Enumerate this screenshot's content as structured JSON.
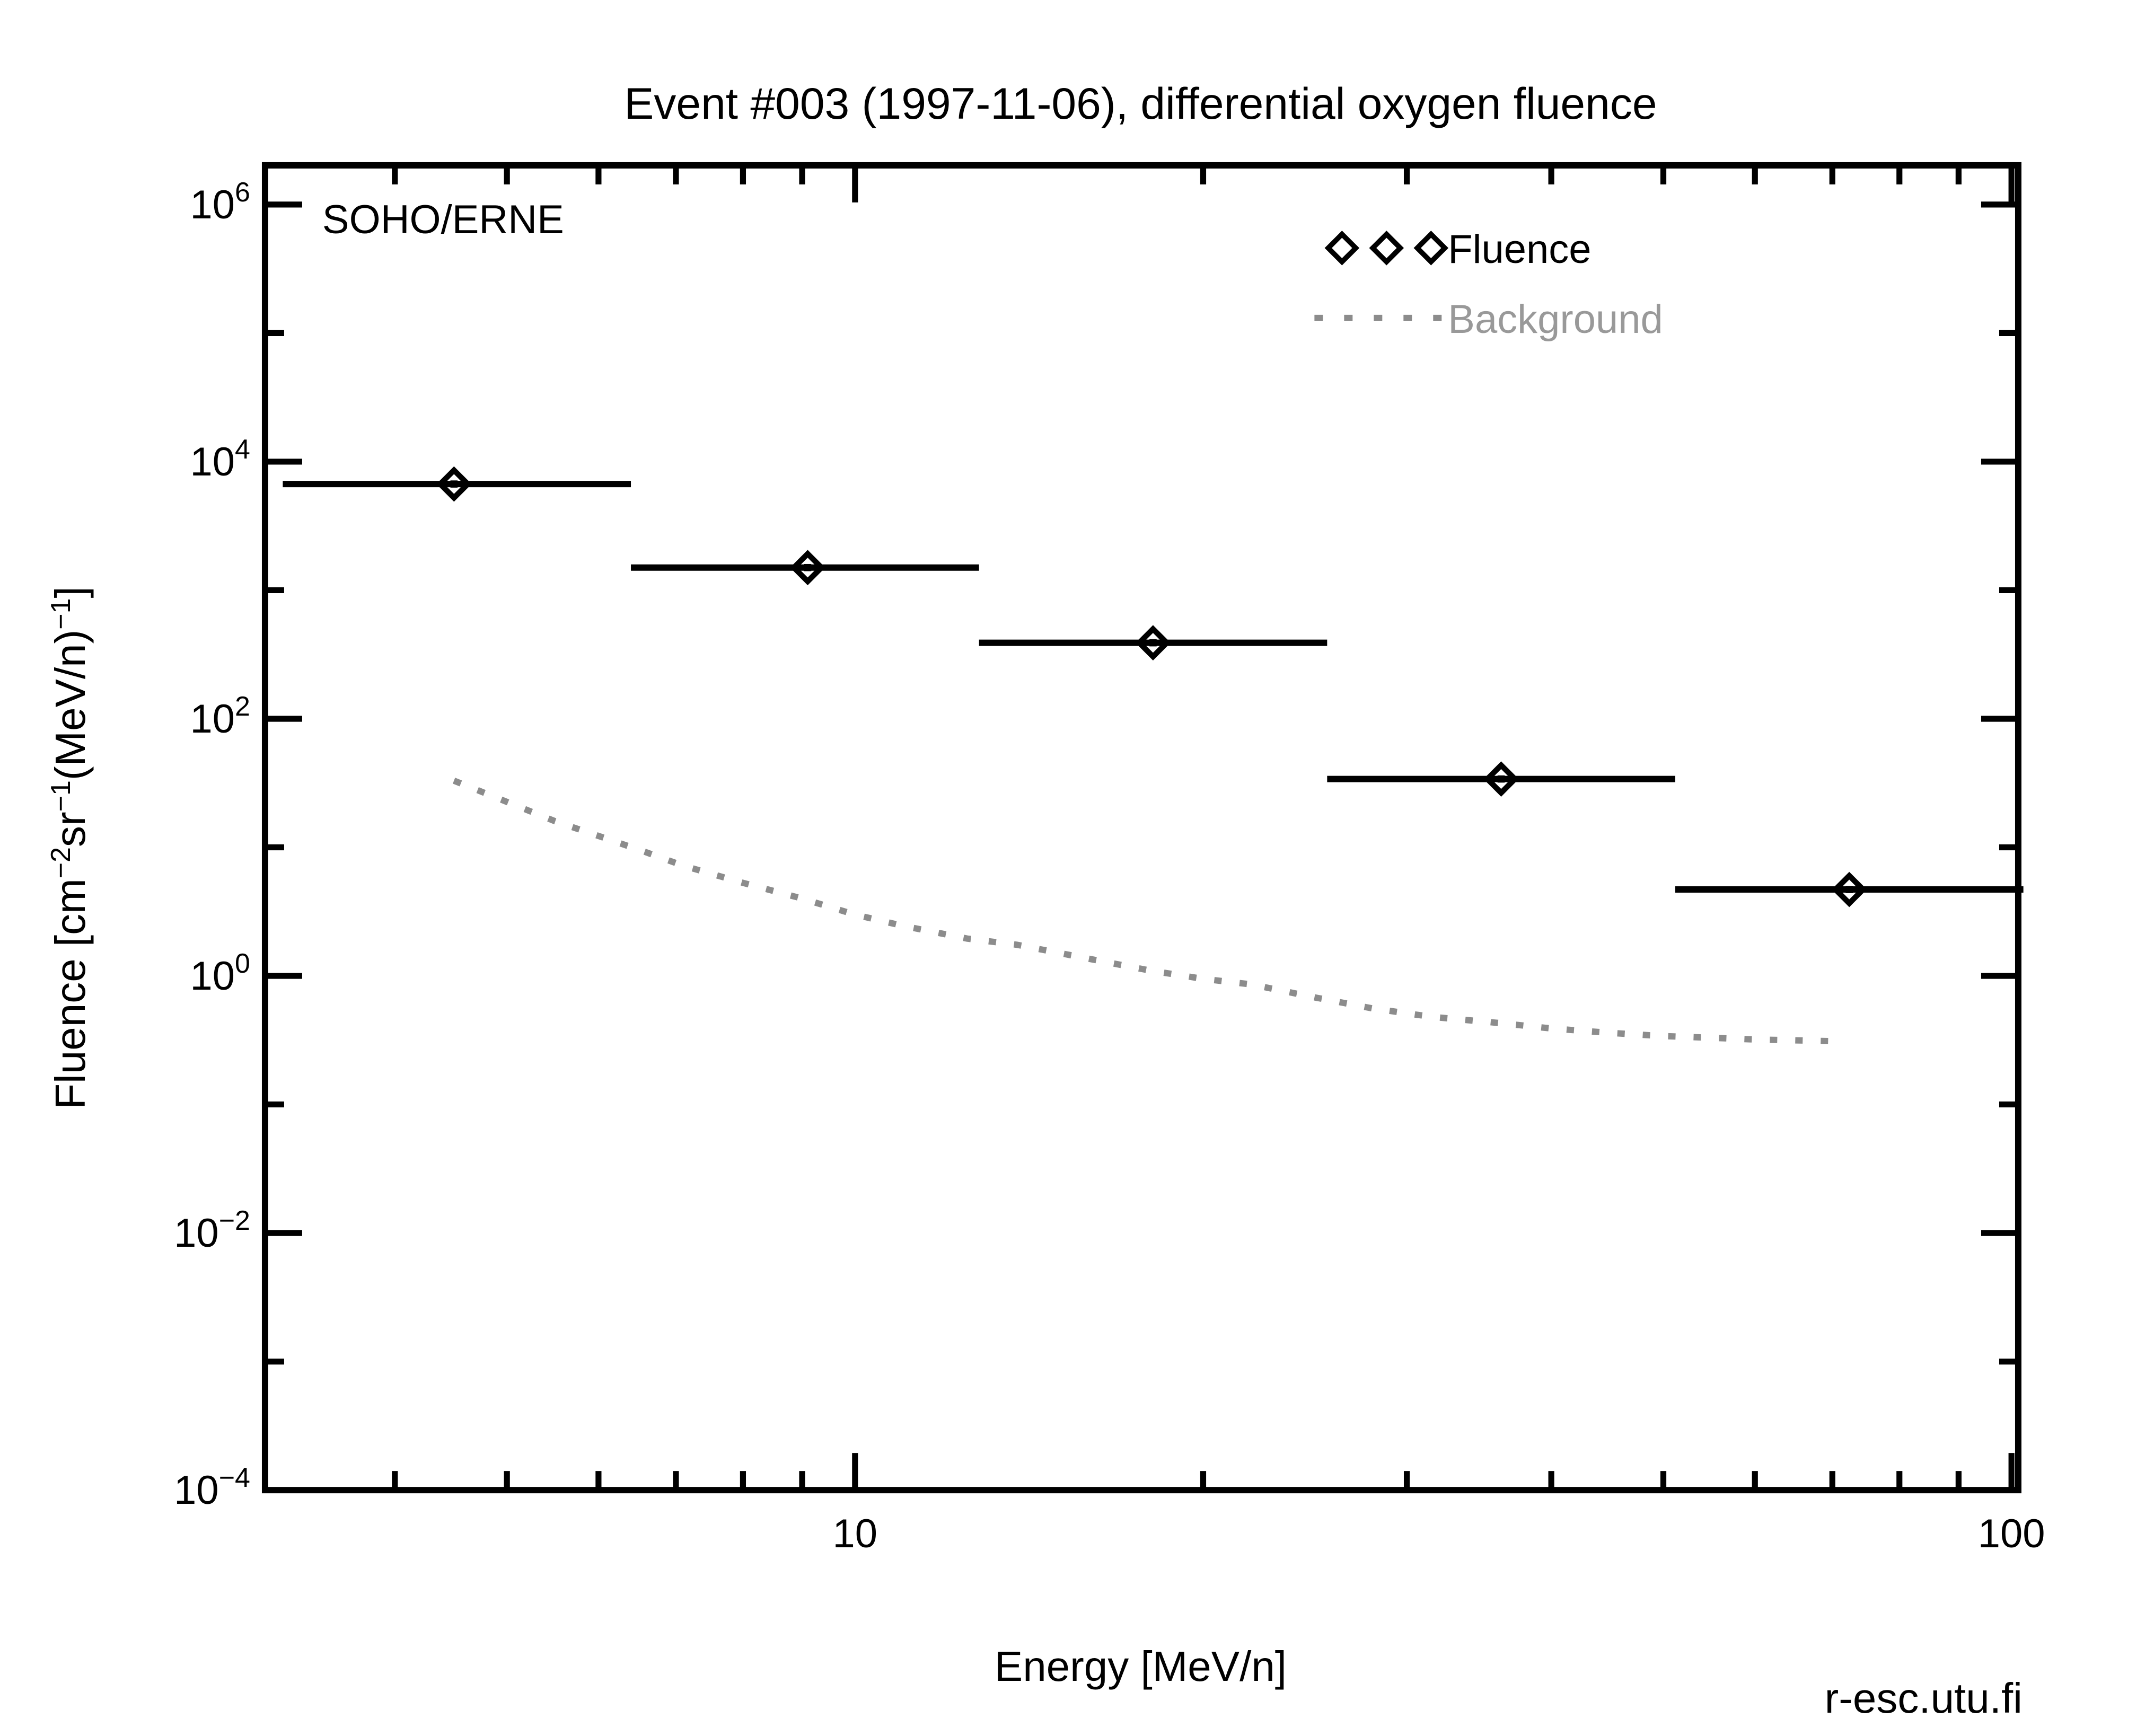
{
  "chart_data": {
    "type": "scatter",
    "title": "Event #003 (1997-11-06), differential oxygen fluence",
    "instrument_label": "SOHO/ERNE",
    "credit": "r-esc.utu.fi",
    "x_axis": {
      "label": "Energy [MeV/n]",
      "scale": "log",
      "range": [
        3.1,
        102.4
      ],
      "labeled_ticks": [
        10,
        100
      ],
      "minor_ticks": [
        4,
        5,
        6,
        7,
        8,
        9,
        20,
        30,
        40,
        50,
        60,
        70,
        80,
        90
      ]
    },
    "y_axis": {
      "label_plain": "Fluence [cm⁻²sr⁻¹(MeV/n)⁻¹]",
      "label_segments": [
        {
          "t": "Fluence [cm"
        },
        {
          "t": "−2",
          "sup": true
        },
        {
          "t": "sr"
        },
        {
          "t": "−1",
          "sup": true
        },
        {
          "t": "(MeV/n)"
        },
        {
          "t": "−1",
          "sup": true
        },
        {
          "t": "]"
        }
      ],
      "scale": "log",
      "range_exponents": [
        -4,
        6
      ],
      "labeled_ticks": [
        {
          "base": "10",
          "exp": "6",
          "log": 6
        },
        {
          "base": "10",
          "exp": "4",
          "log": 4
        },
        {
          "base": "10",
          "exp": "2",
          "log": 2
        },
        {
          "base": "10",
          "exp": "0",
          "log": 0
        },
        {
          "base": "10",
          "exp": "−2",
          "log": -2
        },
        {
          "base": "10",
          "exp": "−4",
          "log": -4
        }
      ],
      "minor_tick_exponents": [
        5,
        3,
        1,
        -1,
        -3
      ]
    },
    "legend": {
      "position": "top-right",
      "items": [
        {
          "label": "Fluence",
          "marker": "open-diamond",
          "color": "#000000",
          "label_color": "#000000"
        },
        {
          "label": "Background",
          "marker": "dotted-line",
          "color": "#8c8c8c",
          "label_color": "#999999"
        }
      ]
    },
    "series": [
      {
        "name": "Fluence",
        "type": "points",
        "marker": "open-diamond-with-center-dot",
        "color": "#000000",
        "points": [
          {
            "energy_bin": [
              3.2,
              6.4
            ],
            "energy": 4.5,
            "fluence": 6700
          },
          {
            "energy_bin": [
              6.4,
              12.8
            ],
            "energy": 9.1,
            "fluence": 1500
          },
          {
            "energy_bin": [
              12.8,
              25.6
            ],
            "energy": 18.1,
            "fluence": 390
          },
          {
            "energy_bin": [
              25.6,
              51.2
            ],
            "energy": 36.2,
            "fluence": 34
          },
          {
            "energy_bin": [
              51.2,
              102.4
            ],
            "energy": 72.4,
            "fluence": 4.7
          }
        ]
      },
      {
        "name": "Background",
        "type": "line",
        "style": "dotted",
        "color": "#8c8c8c",
        "points": [
          [
            4.5,
            33
          ],
          [
            5.5,
            16
          ],
          [
            6.5,
            9.6
          ],
          [
            7.1,
            7.2
          ],
          [
            8,
            5.3
          ],
          [
            9,
            4.0
          ],
          [
            10,
            3.0
          ],
          [
            11,
            2.45
          ],
          [
            12.5,
            1.95
          ],
          [
            13.8,
            1.75
          ],
          [
            16,
            1.35
          ],
          [
            18,
            1.1
          ],
          [
            20,
            0.95
          ],
          [
            22,
            0.86
          ],
          [
            25,
            0.68
          ],
          [
            28,
            0.56
          ],
          [
            31.5,
            0.48
          ],
          [
            36,
            0.43
          ],
          [
            40,
            0.39
          ],
          [
            45,
            0.36
          ],
          [
            50,
            0.34
          ],
          [
            55,
            0.33
          ],
          [
            60,
            0.32
          ],
          [
            65,
            0.315
          ],
          [
            70,
            0.31
          ]
        ]
      }
    ]
  }
}
